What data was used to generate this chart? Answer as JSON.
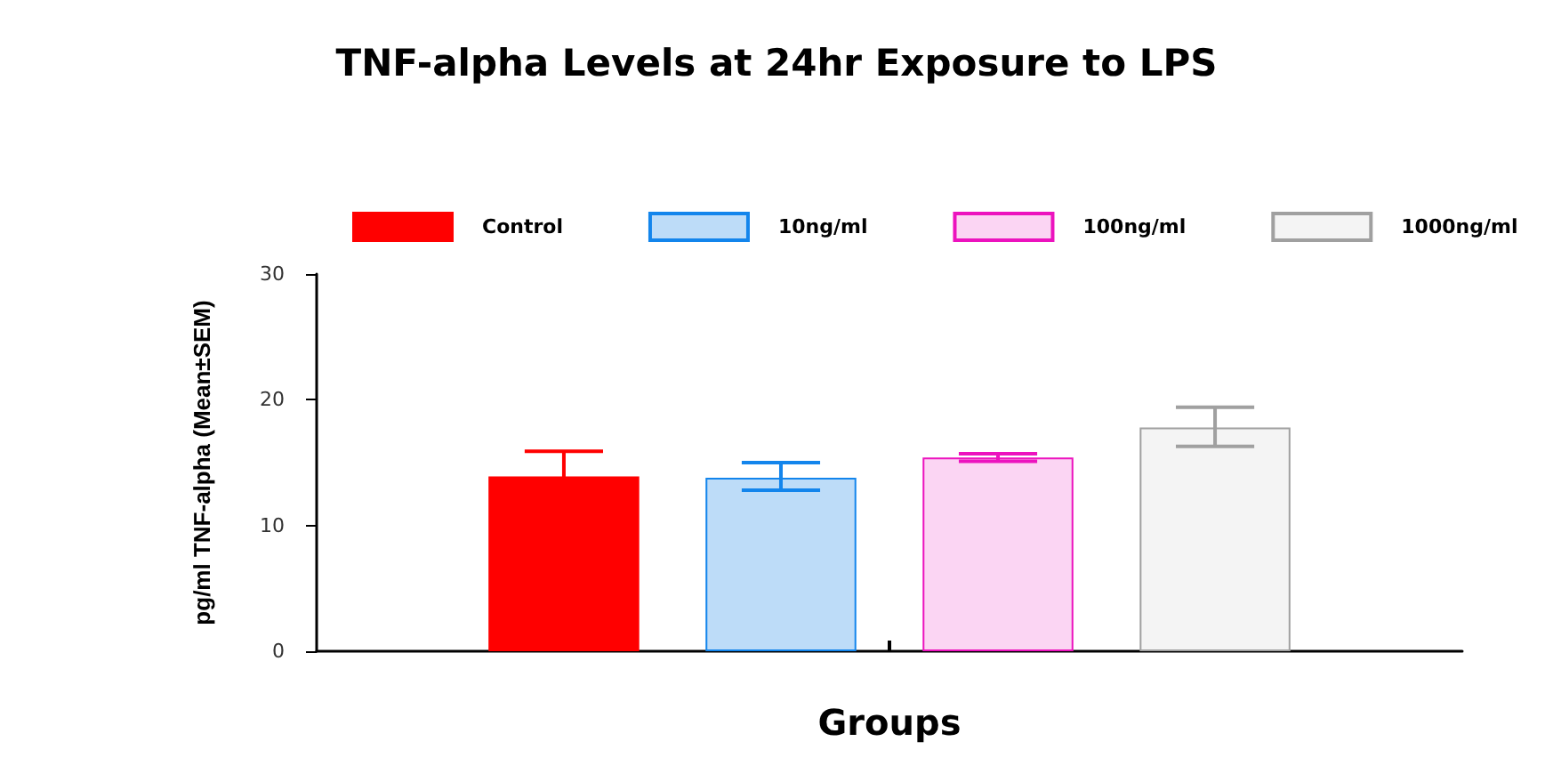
{
  "chart_data": {
    "type": "bar",
    "title": "TNF-alpha Levels at 24hr Exposure to LPS",
    "xlabel": "Groups",
    "ylabel": "pg/ml TNF-alpha (Mean±SEM)",
    "categories": [
      null
    ],
    "series": [
      {
        "name": "Control",
        "color": "#ff0000",
        "values": [
          13.9
        ],
        "errors": [
          2.0
        ]
      },
      {
        "name": "10ng/ml",
        "color": "#bddcf8",
        "values": [
          13.8
        ],
        "errors": [
          [
            12.8,
            15.0
          ]
        ]
      },
      {
        "name": "100ng/ml",
        "color": "#fbd5f3",
        "values": [
          15.4
        ],
        "errors": [
          [
            15.1,
            15.7
          ]
        ]
      },
      {
        "name": "1000ng/ml",
        "color": "#f4f4f4",
        "values": [
          17.8
        ],
        "errors": [
          [
            16.3,
            19.4
          ]
        ]
      }
    ],
    "ylim": [
      0,
      30
    ],
    "yticks": [
      0,
      10,
      20,
      30
    ],
    "grid": false,
    "legend": "top"
  }
}
